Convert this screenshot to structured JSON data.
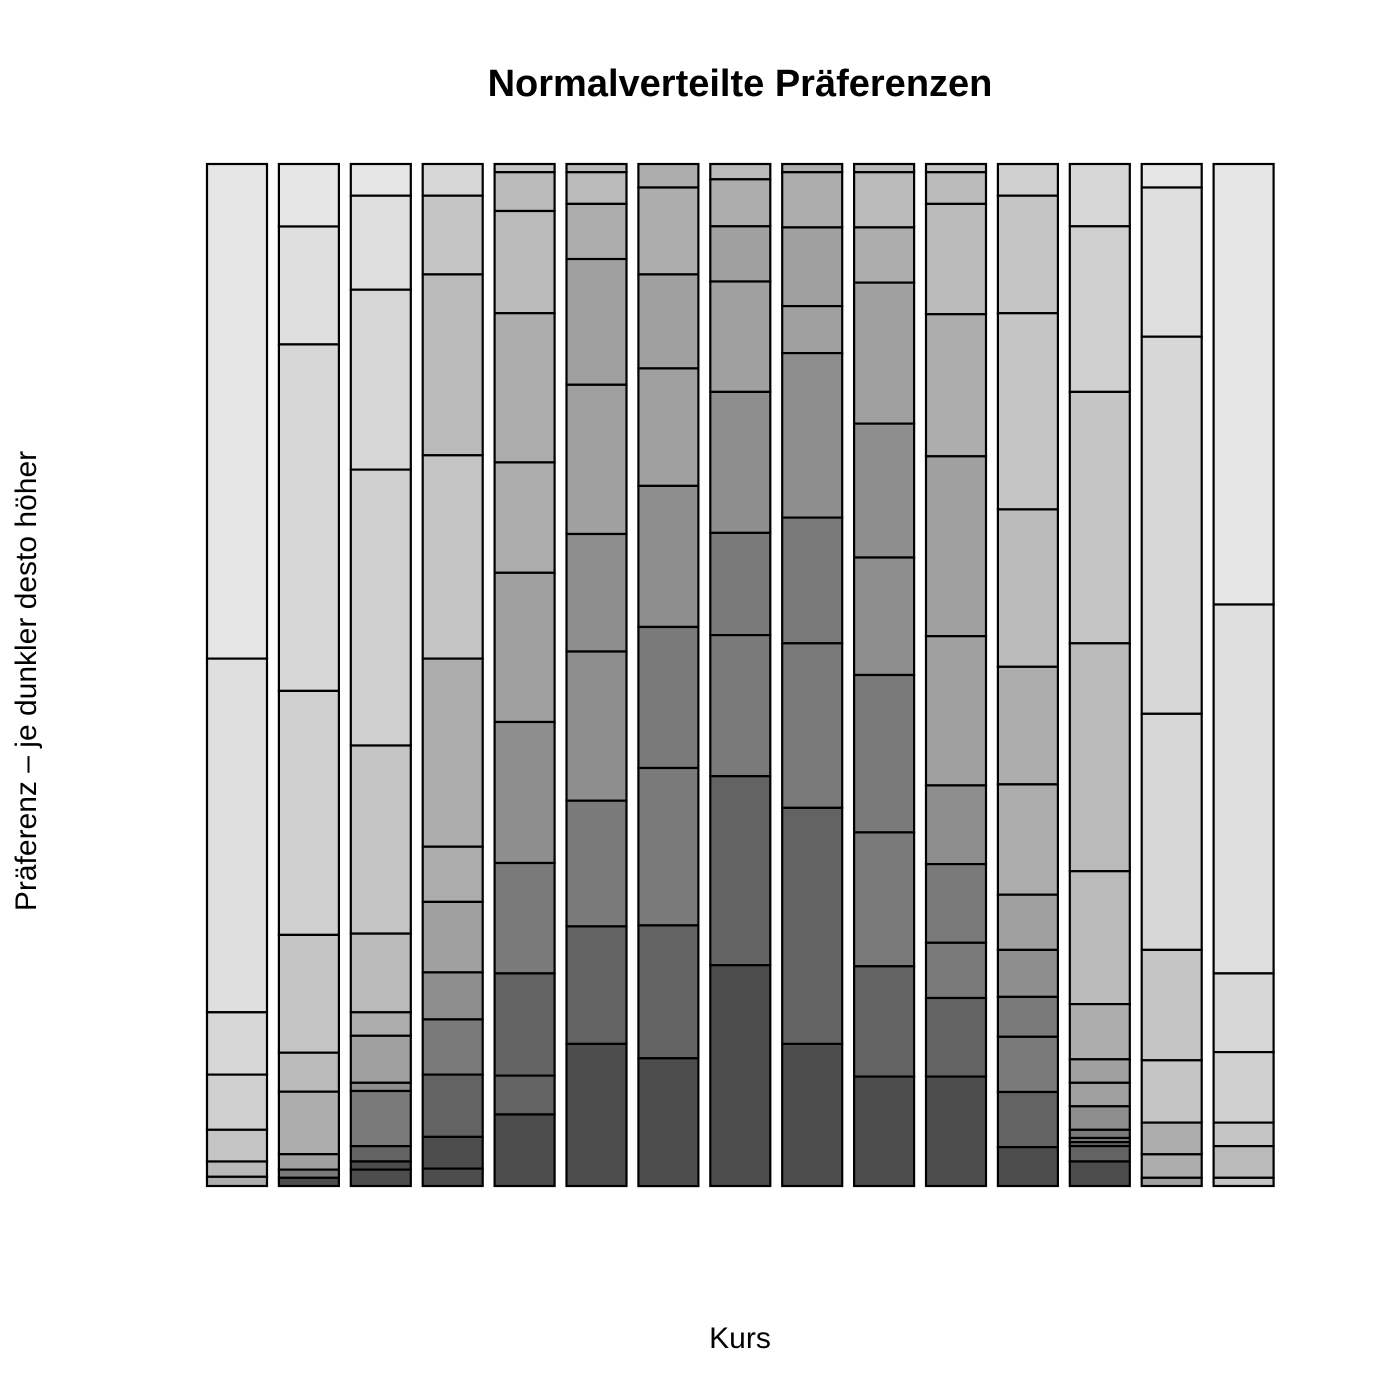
{
  "chart_data": {
    "type": "bar",
    "stacked": true,
    "proportional": true,
    "title": "Normalverteilte Präferenzen",
    "xlabel": "Kurs",
    "ylabel": "Präferenz – je dunkler desto höher",
    "ylim": [
      0,
      1
    ],
    "grid": false,
    "legend": "none",
    "level_colors": [
      "#e6e6e6",
      "#dfdfdf",
      "#d7d7d7",
      "#cfcfcf",
      "#c5c5c5",
      "#bababa",
      "#adadad",
      "#a0a0a0",
      "#8e8e8e",
      "#7a7a7a",
      "#636363",
      "#4d4d4d"
    ],
    "bars": [
      {
        "segments": [
          {
            "value": 0.484,
            "level": 0
          },
          {
            "value": 0.346,
            "level": 1
          },
          {
            "value": 0.061,
            "level": 2
          },
          {
            "value": 0.054,
            "level": 3
          },
          {
            "value": 0.031,
            "level": 4
          },
          {
            "value": 0.015,
            "level": 5
          },
          {
            "value": 0.009,
            "level": 6
          }
        ]
      },
      {
        "segments": [
          {
            "value": 0.061,
            "level": 0
          },
          {
            "value": 0.115,
            "level": 1
          },
          {
            "value": 0.338,
            "level": 2
          },
          {
            "value": 0.238,
            "level": 3
          },
          {
            "value": 0.115,
            "level": 4
          },
          {
            "value": 0.038,
            "level": 5
          },
          {
            "value": 0.061,
            "level": 6
          },
          {
            "value": 0.015,
            "level": 7
          },
          {
            "value": 0.008,
            "level": 9
          },
          {
            "value": 0.008,
            "level": 11
          }
        ]
      },
      {
        "segments": [
          {
            "value": 0.031,
            "level": 0
          },
          {
            "value": 0.092,
            "level": 1
          },
          {
            "value": 0.176,
            "level": 2
          },
          {
            "value": 0.27,
            "level": 3
          },
          {
            "value": 0.184,
            "level": 4
          },
          {
            "value": 0.077,
            "level": 5
          },
          {
            "value": 0.023,
            "level": 6
          },
          {
            "value": 0.046,
            "level": 7
          },
          {
            "value": 0.008,
            "level": 8
          },
          {
            "value": 0.054,
            "level": 9
          },
          {
            "value": 0.015,
            "level": 10
          },
          {
            "value": 0.008,
            "level": 11
          },
          {
            "value": 0.016,
            "level": 11
          }
        ]
      },
      {
        "segments": [
          {
            "value": 0.031,
            "level": 2
          },
          {
            "value": 0.077,
            "level": 4
          },
          {
            "value": 0.177,
            "level": 5
          },
          {
            "value": 0.199,
            "level": 4
          },
          {
            "value": 0.184,
            "level": 6
          },
          {
            "value": 0.054,
            "level": 6
          },
          {
            "value": 0.069,
            "level": 7
          },
          {
            "value": 0.046,
            "level": 8
          },
          {
            "value": 0.054,
            "level": 9
          },
          {
            "value": 0.061,
            "level": 10
          },
          {
            "value": 0.031,
            "level": 11
          },
          {
            "value": 0.017,
            "level": 11
          }
        ]
      },
      {
        "segments": [
          {
            "value": 0.008,
            "level": 4
          },
          {
            "value": 0.038,
            "level": 5
          },
          {
            "value": 0.1,
            "level": 5
          },
          {
            "value": 0.146,
            "level": 6
          },
          {
            "value": 0.108,
            "level": 6
          },
          {
            "value": 0.146,
            "level": 7
          },
          {
            "value": 0.138,
            "level": 8
          },
          {
            "value": 0.108,
            "level": 9
          },
          {
            "value": 0.1,
            "level": 10
          },
          {
            "value": 0.038,
            "level": 10
          },
          {
            "value": 0.07,
            "level": 11
          }
        ]
      },
      {
        "segments": [
          {
            "value": 0.008,
            "level": 5
          },
          {
            "value": 0.031,
            "level": 5
          },
          {
            "value": 0.054,
            "level": 6
          },
          {
            "value": 0.123,
            "level": 7
          },
          {
            "value": 0.146,
            "level": 7
          },
          {
            "value": 0.115,
            "level": 8
          },
          {
            "value": 0.146,
            "level": 8
          },
          {
            "value": 0.123,
            "level": 9
          },
          {
            "value": 0.115,
            "level": 10
          },
          {
            "value": 0.139,
            "level": 11
          }
        ]
      },
      {
        "segments": [
          {
            "value": 0.023,
            "level": 6
          },
          {
            "value": 0.085,
            "level": 6
          },
          {
            "value": 0.092,
            "level": 7
          },
          {
            "value": 0.115,
            "level": 7
          },
          {
            "value": 0.138,
            "level": 8
          },
          {
            "value": 0.138,
            "level": 9
          },
          {
            "value": 0.154,
            "level": 9
          },
          {
            "value": 0.13,
            "level": 10
          },
          {
            "value": 0.125,
            "level": 11
          }
        ]
      },
      {
        "segments": [
          {
            "value": 0.015,
            "level": 5
          },
          {
            "value": 0.046,
            "level": 6
          },
          {
            "value": 0.054,
            "level": 7
          },
          {
            "value": 0.108,
            "level": 7
          },
          {
            "value": 0.138,
            "level": 8
          },
          {
            "value": 0.1,
            "level": 9
          },
          {
            "value": 0.138,
            "level": 9
          },
          {
            "value": 0.185,
            "level": 10
          },
          {
            "value": 0.216,
            "level": 11
          }
        ]
      },
      {
        "segments": [
          {
            "value": 0.008,
            "level": 6
          },
          {
            "value": 0.054,
            "level": 6
          },
          {
            "value": 0.077,
            "level": 7
          },
          {
            "value": 0.046,
            "level": 7
          },
          {
            "value": 0.161,
            "level": 8
          },
          {
            "value": 0.123,
            "level": 9
          },
          {
            "value": 0.161,
            "level": 9
          },
          {
            "value": 0.231,
            "level": 10
          },
          {
            "value": 0.139,
            "level": 11
          }
        ]
      },
      {
        "segments": [
          {
            "value": 0.008,
            "level": 5
          },
          {
            "value": 0.054,
            "level": 5
          },
          {
            "value": 0.054,
            "level": 6
          },
          {
            "value": 0.138,
            "level": 7
          },
          {
            "value": 0.131,
            "level": 8
          },
          {
            "value": 0.115,
            "level": 8
          },
          {
            "value": 0.154,
            "level": 9
          },
          {
            "value": 0.131,
            "level": 9
          },
          {
            "value": 0.108,
            "level": 10
          },
          {
            "value": 0.107,
            "level": 11
          }
        ]
      },
      {
        "segments": [
          {
            "value": 0.008,
            "level": 4
          },
          {
            "value": 0.031,
            "level": 5
          },
          {
            "value": 0.108,
            "level": 5
          },
          {
            "value": 0.139,
            "level": 6
          },
          {
            "value": 0.176,
            "level": 7
          },
          {
            "value": 0.146,
            "level": 7
          },
          {
            "value": 0.077,
            "level": 8
          },
          {
            "value": 0.077,
            "level": 9
          },
          {
            "value": 0.054,
            "level": 9
          },
          {
            "value": 0.077,
            "level": 10
          },
          {
            "value": 0.107,
            "level": 11
          }
        ]
      },
      {
        "segments": [
          {
            "value": 0.031,
            "level": 3
          },
          {
            "value": 0.115,
            "level": 4
          },
          {
            "value": 0.192,
            "level": 4
          },
          {
            "value": 0.154,
            "level": 5
          },
          {
            "value": 0.115,
            "level": 6
          },
          {
            "value": 0.108,
            "level": 6
          },
          {
            "value": 0.054,
            "level": 7
          },
          {
            "value": 0.046,
            "level": 8
          },
          {
            "value": 0.039,
            "level": 9
          },
          {
            "value": 0.054,
            "level": 9
          },
          {
            "value": 0.054,
            "level": 10
          },
          {
            "value": 0.038,
            "level": 11
          }
        ]
      },
      {
        "segments": [
          {
            "value": 0.061,
            "level": 2
          },
          {
            "value": 0.162,
            "level": 3
          },
          {
            "value": 0.246,
            "level": 4
          },
          {
            "value": 0.223,
            "level": 5
          },
          {
            "value": 0.13,
            "level": 5
          },
          {
            "value": 0.054,
            "level": 6
          },
          {
            "value": 0.023,
            "level": 7
          },
          {
            "value": 0.023,
            "level": 7
          },
          {
            "value": 0.023,
            "level": 8
          },
          {
            "value": 0.008,
            "level": 9
          },
          {
            "value": 0.004,
            "level": 9
          },
          {
            "value": 0.004,
            "level": 10
          },
          {
            "value": 0.015,
            "level": 10
          },
          {
            "value": 0.024,
            "level": 11
          }
        ]
      },
      {
        "segments": [
          {
            "value": 0.023,
            "level": 0
          },
          {
            "value": 0.146,
            "level": 1
          },
          {
            "value": 0.369,
            "level": 2
          },
          {
            "value": 0.231,
            "level": 2
          },
          {
            "value": 0.108,
            "level": 4
          },
          {
            "value": 0.061,
            "level": 4
          },
          {
            "value": 0.031,
            "level": 6
          },
          {
            "value": 0.023,
            "level": 6
          },
          {
            "value": 0.008,
            "level": 7
          }
        ]
      },
      {
        "segments": [
          {
            "value": 0.431,
            "level": 0
          },
          {
            "value": 0.361,
            "level": 1
          },
          {
            "value": 0.077,
            "level": 2
          },
          {
            "value": 0.069,
            "level": 3
          },
          {
            "value": 0.023,
            "level": 4
          },
          {
            "value": 0.031,
            "level": 5
          },
          {
            "value": 0.008,
            "level": 4
          }
        ]
      }
    ]
  }
}
